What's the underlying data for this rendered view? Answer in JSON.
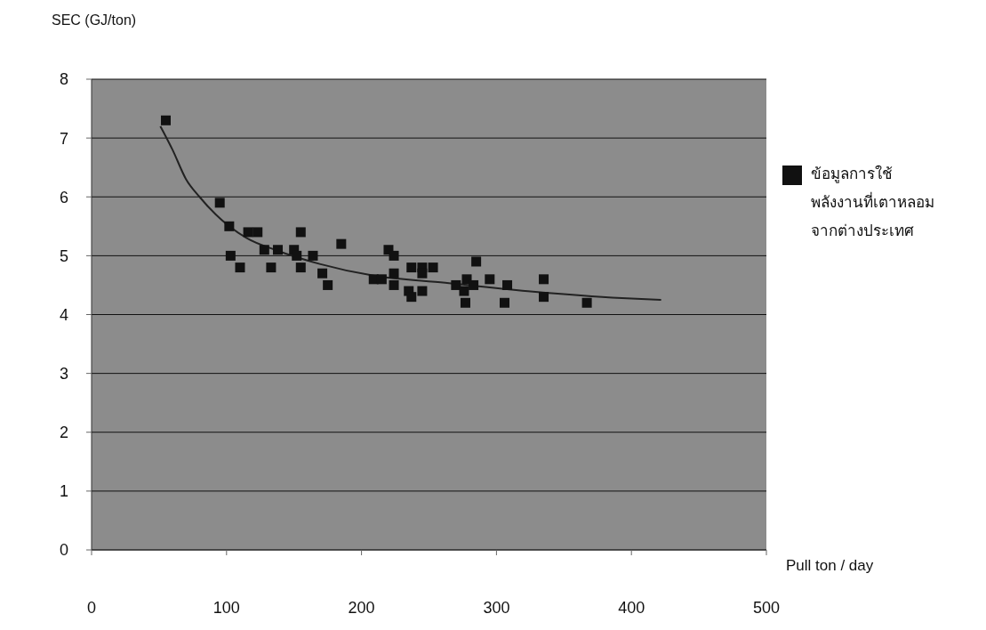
{
  "chart_data": {
    "type": "scatter",
    "xlabel": "Pull ton / day",
    "ylabel": "SEC (GJ/ton)",
    "xlim": [
      0,
      500
    ],
    "xticks": [
      0,
      100,
      200,
      300,
      400,
      500
    ],
    "ylim": [
      0,
      8
    ],
    "yticks": [
      0,
      1,
      2,
      3,
      4,
      5,
      6,
      7,
      8
    ],
    "grid": "y",
    "legend": "right",
    "marker": "square",
    "series": [
      {
        "name": "ข้อมูลการใช้พลังงานที่เตาหลอมจากต่างประเทศ",
        "color": "#111111",
        "x": [
          55,
          95,
          102,
          116,
          123,
          155,
          185,
          103,
          110,
          128,
          138,
          150,
          152,
          155,
          164,
          133,
          171,
          175,
          209,
          215,
          220,
          224,
          224,
          224,
          237,
          245,
          253,
          245,
          235,
          237,
          245,
          285,
          270,
          278,
          283,
          276,
          277,
          295,
          308,
          306,
          335,
          335,
          367
        ],
        "values": [
          7.3,
          5.9,
          5.5,
          5.4,
          5.4,
          5.4,
          5.2,
          5.0,
          4.8,
          5.1,
          5.1,
          5.1,
          5.0,
          4.8,
          5.0,
          4.8,
          4.7,
          4.5,
          4.6,
          4.6,
          5.1,
          5.0,
          4.7,
          4.5,
          4.8,
          4.8,
          4.8,
          4.7,
          4.4,
          4.3,
          4.4,
          4.9,
          4.5,
          4.6,
          4.5,
          4.4,
          4.2,
          4.6,
          4.5,
          4.2,
          4.6,
          4.3,
          4.2
        ]
      },
      {
        "type": "line",
        "color": "#222222",
        "marker": "none",
        "x": [
          51,
          60,
          70,
          80,
          92,
          115,
          136,
          169,
          209,
          262,
          327,
          393,
          422
        ],
        "values": [
          7.2,
          6.8,
          6.3,
          6.0,
          5.7,
          5.3,
          5.1,
          4.86,
          4.66,
          4.54,
          4.39,
          4.28,
          4.25
        ]
      }
    ]
  }
}
